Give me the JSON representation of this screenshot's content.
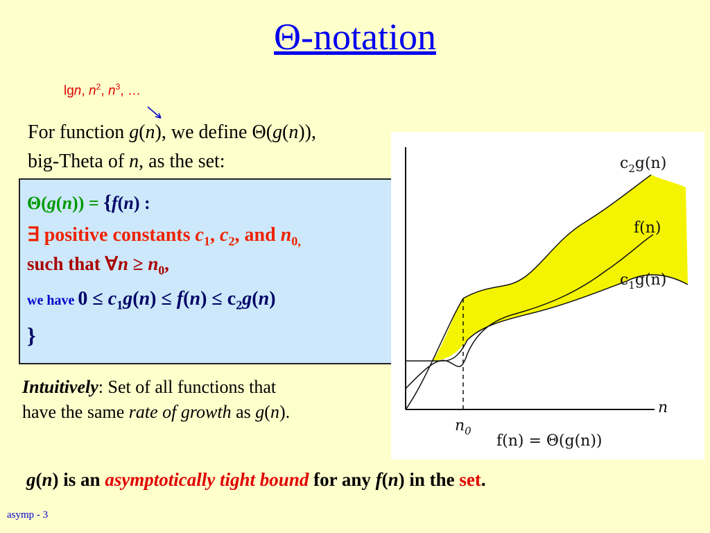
{
  "title": "Θ-notation",
  "annotation": [
    "lg",
    "n",
    ", ",
    "n",
    "2",
    ", ",
    "n",
    "3",
    ", …"
  ],
  "intro": {
    "line1": [
      "For function ",
      "g",
      "(",
      "n",
      "), we define Θ(",
      "g",
      "(",
      "n",
      ")),"
    ],
    "line2": [
      "big-Theta of ",
      "n",
      ", as the set:"
    ]
  },
  "definition": {
    "line1": [
      "Θ(",
      "g",
      "(",
      "n",
      ")) = ",
      "{",
      "f",
      "(",
      "n",
      ") :"
    ],
    "line2": [
      "∃ positive constants ",
      "c",
      "1",
      ", ",
      "c",
      "2",
      ", and ",
      "n",
      "0,"
    ],
    "line3": [
      "such that ∀",
      "n",
      " ≥ ",
      " n",
      "0",
      ","
    ],
    "line4": [
      "we have ",
      "0 ≤ ",
      "c",
      "1",
      "g",
      "(",
      "n",
      ") ≤ ",
      " f",
      "(",
      "n",
      ") ≤ c",
      "2",
      "g",
      "(",
      "n",
      ")"
    ],
    "line5": [
      "}"
    ]
  },
  "intuition": {
    "line1": [
      "Intuitively",
      ": Set of all functions that"
    ],
    "line2": [
      "have the same ",
      "rate of growth",
      " as ",
      "g",
      "(",
      "n",
      ")."
    ]
  },
  "conclusion": [
    "g",
    "(",
    "n",
    ") is an ",
    "asymptotically tight bound",
    " for any ",
    "f",
    "(",
    "n",
    ") in the ",
    "set",
    "."
  ],
  "graph": {
    "upper": [
      "c",
      "2",
      "g(n)"
    ],
    "middle": [
      "f(n)"
    ],
    "lower": [
      "c",
      "1",
      "g(n)"
    ],
    "x_axis": "n",
    "threshold": [
      "n",
      "0"
    ],
    "caption": "f(n) = Θ(g(n))"
  },
  "footer": "asymp - 3"
}
